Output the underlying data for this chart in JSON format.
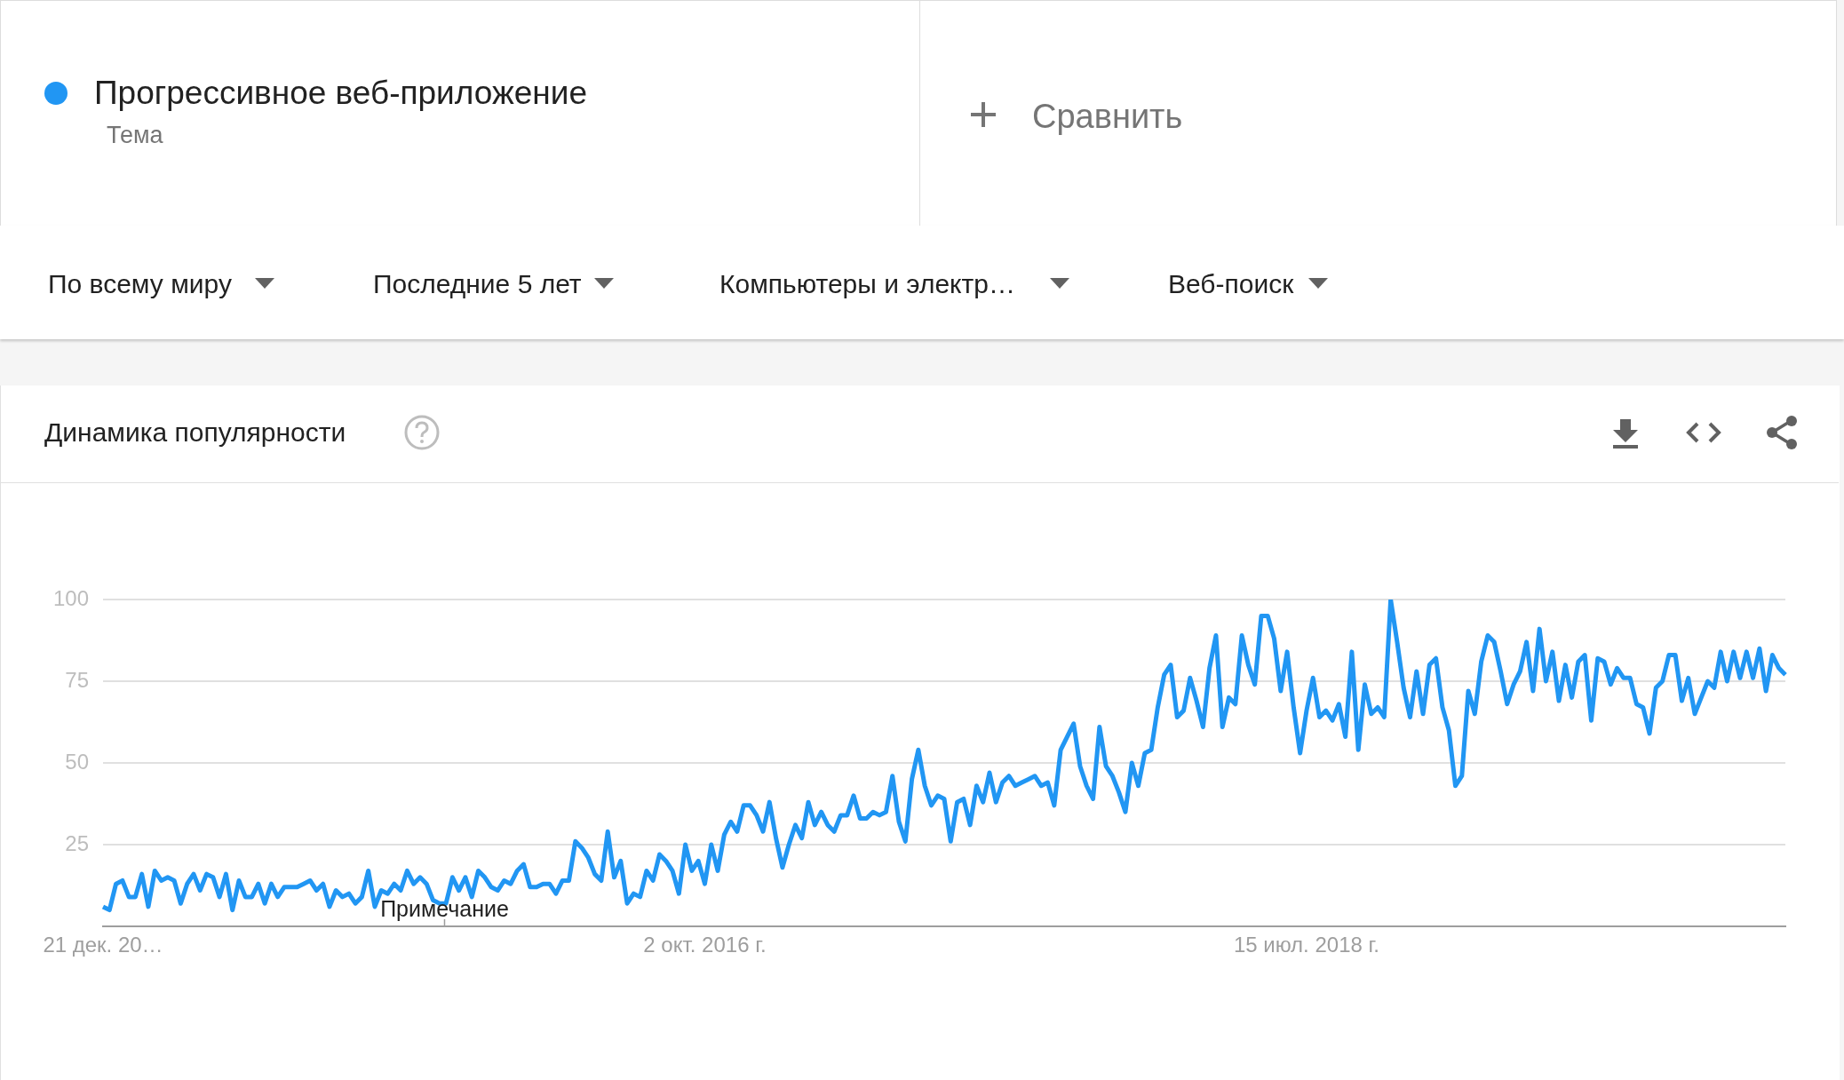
{
  "chart_data": {
    "type": "line",
    "title": "Динамика популярности",
    "legend": "top left",
    "grid": "y",
    "ylim": [
      0,
      100
    ],
    "yticks": [
      25,
      50,
      75,
      100
    ],
    "annotations": [
      "Тема",
      "Сравнить",
      "По всему миру",
      "Последние 5 лет",
      "Компьютеры и электр…",
      "Веб-поиск",
      "Примечание"
    ],
    "categories": [
      "21 дек. 20…",
      null,
      null,
      null,
      null,
      null,
      null,
      null,
      null,
      null,
      null,
      null,
      null,
      null,
      null,
      null,
      null,
      null,
      null,
      null,
      null,
      null,
      null,
      null,
      null,
      null,
      null,
      null,
      null,
      null,
      null,
      null,
      null,
      null,
      null,
      null,
      null,
      null,
      null,
      null,
      null,
      null,
      null,
      null,
      null,
      null,
      null,
      null,
      null,
      null,
      null,
      null,
      null,
      null,
      null,
      null,
      null,
      null,
      null,
      null,
      null,
      null,
      null,
      null,
      null,
      null,
      null,
      null,
      null,
      null,
      null,
      null,
      null,
      null,
      null,
      null,
      null,
      null,
      null,
      null,
      null,
      null,
      null,
      null,
      null,
      null,
      null,
      null,
      null,
      null,
      null,
      null,
      null,
      "2 окт. 2016 г.",
      null,
      null,
      null,
      null,
      null,
      null,
      null,
      null,
      null,
      null,
      null,
      null,
      null,
      null,
      null,
      null,
      null,
      null,
      null,
      null,
      null,
      null,
      null,
      null,
      null,
      null,
      null,
      null,
      null,
      null,
      null,
      null,
      null,
      null,
      null,
      null,
      null,
      null,
      null,
      null,
      null,
      null,
      null,
      null,
      null,
      null,
      null,
      null,
      null,
      null,
      null,
      null,
      null,
      null,
      null,
      null,
      null,
      null,
      null,
      null,
      null,
      null,
      null,
      null,
      null,
      null,
      null,
      null,
      null,
      null,
      null,
      null,
      null,
      null,
      null,
      null,
      null,
      null,
      null,
      null,
      null,
      null,
      null,
      null,
      null,
      null,
      null,
      null,
      null,
      null,
      null,
      null,
      "15 июл. 2018 г.",
      null,
      null,
      null,
      null,
      null,
      null,
      null,
      null,
      null,
      null,
      null,
      null,
      null,
      null,
      null,
      null,
      null,
      null,
      null,
      null,
      null,
      null,
      null,
      null,
      null,
      null,
      null,
      null,
      null,
      null,
      null,
      null,
      null,
      null,
      null,
      null,
      null,
      null,
      null,
      null,
      null,
      null,
      null,
      null,
      null,
      null,
      null,
      null,
      null,
      null,
      null,
      null,
      null,
      null,
      null,
      null,
      null,
      null,
      null,
      null,
      null,
      null,
      null,
      null,
      null,
      null,
      null,
      null,
      null,
      null,
      null,
      null,
      null,
      null
    ],
    "series": [
      {
        "name": "Прогрессивное веб-приложение",
        "color": "#2196f3",
        "values": [
          6,
          5,
          13,
          14,
          9,
          9,
          16,
          6,
          17,
          14,
          15,
          14,
          7,
          13,
          16,
          11,
          16,
          15,
          9,
          16,
          5,
          14,
          9,
          9,
          13,
          7,
          13,
          9,
          12,
          12,
          12,
          13,
          14,
          11,
          13,
          6,
          11,
          9,
          10,
          7,
          9,
          17,
          6,
          11,
          10,
          13,
          11,
          17,
          13,
          15,
          13,
          8,
          7,
          7,
          15,
          11,
          15,
          9,
          17,
          15,
          12,
          11,
          14,
          13,
          17,
          19,
          12,
          12,
          13,
          13,
          10,
          14,
          14,
          26,
          24,
          21,
          16,
          14,
          29,
          15,
          20,
          7,
          10,
          9,
          17,
          14,
          22,
          20,
          17,
          10,
          25,
          17,
          20,
          13,
          25,
          17,
          28,
          32,
          29,
          37,
          37,
          34,
          29,
          38,
          27,
          18,
          25,
          31,
          27,
          38,
          31,
          35,
          31,
          29,
          34,
          34,
          40,
          33,
          33,
          35,
          34,
          35,
          46,
          32,
          26,
          45,
          54,
          43,
          37,
          40,
          39,
          26,
          38,
          39,
          31,
          43,
          38,
          47,
          38,
          44,
          46,
          43,
          44,
          45,
          46,
          43,
          44,
          37,
          54,
          58,
          62,
          49,
          43,
          39,
          61,
          49,
          46,
          41,
          35,
          50,
          43,
          53,
          54,
          67,
          77,
          80,
          64,
          66,
          76,
          69,
          61,
          79,
          89,
          61,
          70,
          68,
          89,
          80,
          74,
          95,
          95,
          88,
          72,
          84,
          67,
          53,
          66,
          76,
          64,
          66,
          63,
          68,
          58,
          84,
          54,
          74,
          65,
          67,
          64,
          100,
          87,
          73,
          64,
          78,
          65,
          80,
          82,
          67,
          60,
          43,
          46,
          72,
          65,
          81,
          89,
          87,
          78,
          68,
          74,
          78,
          87,
          72,
          91,
          75,
          84,
          69,
          80,
          70,
          81,
          83,
          63,
          82,
          81,
          74,
          79,
          76,
          76,
          68,
          67,
          59,
          73,
          75,
          83,
          83,
          69,
          76,
          65,
          70,
          75,
          73,
          84,
          75,
          84,
          76,
          84,
          76,
          85,
          72,
          83,
          79,
          77
        ]
      }
    ]
  }
}
